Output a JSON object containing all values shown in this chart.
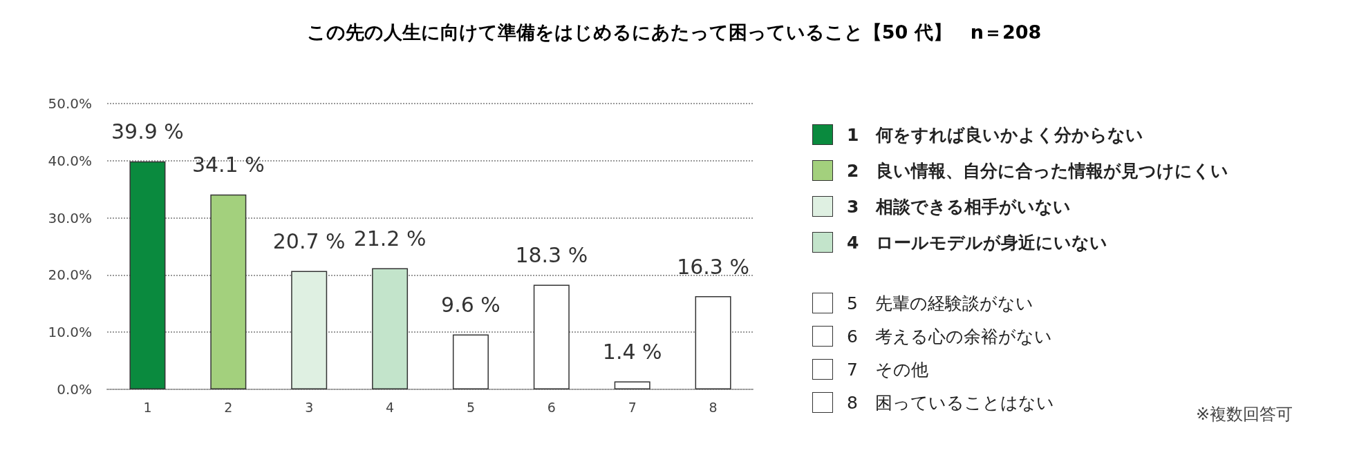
{
  "chart_data": {
    "type": "bar",
    "title": "この先の人生に向けて準備をはじめるにあたって困っていること【50 代】　n＝208",
    "categories": [
      "1",
      "2",
      "3",
      "4",
      "5",
      "6",
      "7",
      "8"
    ],
    "values": [
      39.9,
      34.1,
      20.7,
      21.2,
      9.6,
      18.3,
      1.4,
      16.3
    ],
    "colors": [
      "#0a8a3e",
      "#a3d07d",
      "#dff0e2",
      "#c3e4cb",
      "#ffffff",
      "#ffffff",
      "#ffffff",
      "#ffffff"
    ],
    "value_labels": [
      "39.9 %",
      "34.1 %",
      "20.7 %",
      "21.2 %",
      "9.6 %",
      "18.3 %",
      "1.4 %",
      "16.3 %"
    ],
    "ylim": [
      0,
      50
    ],
    "yticks": [
      {
        "value": 0,
        "label": "0.0%"
      },
      {
        "value": 10,
        "label": "10.0%"
      },
      {
        "value": 20,
        "label": "20.0%"
      },
      {
        "value": 30,
        "label": "30.0%"
      },
      {
        "value": 40,
        "label": "40.0%"
      },
      {
        "value": 50,
        "label": "50.0%"
      }
    ],
    "grid": "y",
    "annotations": [
      "1　何をすれば良いかよく分からない",
      "2　良い情報、自分に合った情報が見つけにくい",
      "3　相談できる相手がいない",
      "4　ロールモデルが身近にいない",
      "5　先輩の経験談がない",
      "6　考える心の余裕がない",
      "7　その他",
      "8　困っていることはない",
      "※複数回答可"
    ]
  }
}
